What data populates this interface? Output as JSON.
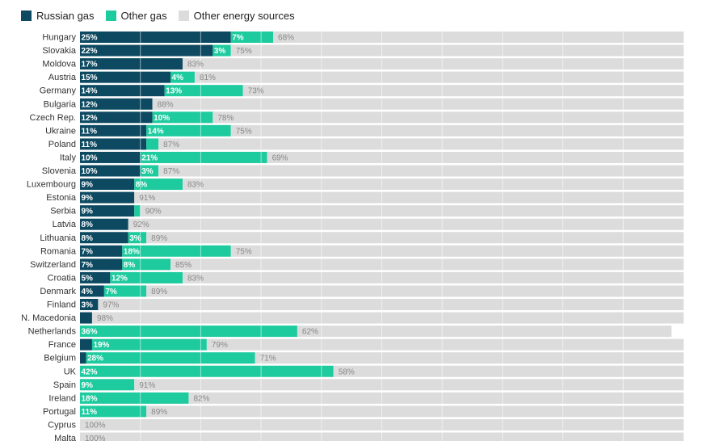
{
  "colors": {
    "russian": "#0d4a62",
    "other_gas": "#1ecb9e",
    "other_energy": "#dcdcdc",
    "grid": "#ffffff"
  },
  "chart_data": {
    "type": "bar",
    "orientation": "horizontal",
    "stacked": true,
    "xlim": [
      0,
      100
    ],
    "legend_position": "top-left",
    "legend": [
      {
        "key": "russian",
        "label": "Russian gas"
      },
      {
        "key": "other_gas",
        "label": "Other gas"
      },
      {
        "key": "other_energy",
        "label": "Other energy sources"
      }
    ],
    "categories": [
      "Hungary",
      "Slovakia",
      "Moldova",
      "Austria",
      "Germany",
      "Bulgaria",
      "Czech Rep.",
      "Ukraine",
      "Poland",
      "Italy",
      "Slovenia",
      "Luxembourg",
      "Estonia",
      "Serbia",
      "Latvia",
      "Lithuania",
      "Romania",
      "Switzerland",
      "Croatia",
      "Denmark",
      "Finland",
      "N. Macedonia",
      "Netherlands",
      "France",
      "Belgium",
      "UK",
      "Spain",
      "Ireland",
      "Portugal",
      "Cyprus",
      "Malta"
    ],
    "series": [
      {
        "name": "Russian gas",
        "key": "russian",
        "values": [
          25,
          22,
          17,
          15,
          14,
          12,
          12,
          11,
          11,
          10,
          10,
          9,
          9,
          9,
          8,
          8,
          7,
          7,
          5,
          4,
          3,
          2,
          0,
          2,
          1,
          0,
          0,
          0,
          0,
          0,
          0
        ],
        "labels": [
          "25%",
          "22%",
          "17%",
          "15%",
          "14%",
          "12%",
          "12%",
          "11%",
          "11%",
          "10%",
          "10%",
          "9%",
          "9%",
          "9%",
          "8%",
          "8%",
          "7%",
          "7%",
          "5%",
          "4%",
          "3%",
          "",
          "",
          "",
          "",
          "",
          "",
          "",
          "",
          "",
          ""
        ]
      },
      {
        "name": "Other gas",
        "key": "other_gas",
        "values": [
          7,
          3,
          0,
          4,
          13,
          0,
          10,
          14,
          2,
          21,
          3,
          8,
          0,
          1,
          0,
          3,
          18,
          8,
          12,
          7,
          0,
          0,
          36,
          19,
          28,
          42,
          9,
          18,
          11,
          0,
          0
        ],
        "labels": [
          "7%",
          "3%",
          "",
          "4%",
          "13%",
          "",
          "10%",
          "14%",
          "",
          "21%",
          "3%",
          "8%",
          "",
          "",
          "",
          "3%",
          "18%",
          "8%",
          "12%",
          "7%",
          "",
          "",
          "36%",
          "19%",
          "28%",
          "42%",
          "9%",
          "18%",
          "11%",
          "",
          ""
        ]
      },
      {
        "name": "Other energy sources",
        "key": "other_energy",
        "values": [
          68,
          75,
          83,
          81,
          73,
          88,
          78,
          75,
          87,
          69,
          87,
          83,
          91,
          90,
          92,
          89,
          75,
          85,
          83,
          89,
          97,
          98,
          62,
          79,
          71,
          58,
          91,
          82,
          89,
          100,
          100
        ],
        "labels": [
          "68%",
          "75%",
          "83%",
          "81%",
          "73%",
          "88%",
          "78%",
          "75%",
          "87%",
          "69%",
          "87%",
          "83%",
          "91%",
          "90%",
          "92%",
          "89%",
          "75%",
          "85%",
          "83%",
          "89%",
          "97%",
          "98%",
          "62%",
          "79%",
          "71%",
          "58%",
          "91%",
          "82%",
          "89%",
          "100%",
          "100%"
        ]
      }
    ]
  }
}
